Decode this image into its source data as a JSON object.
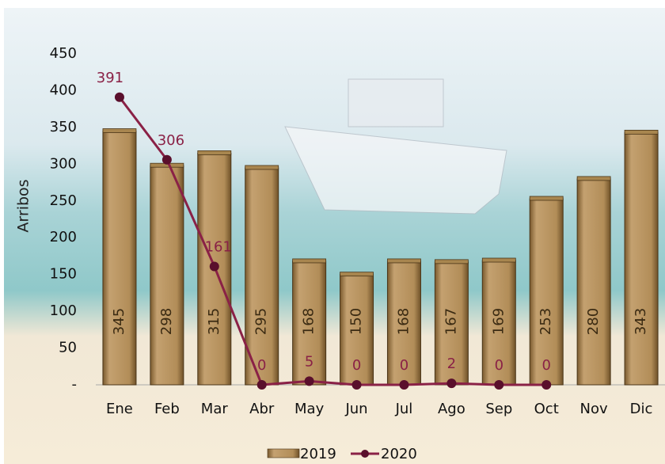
{
  "chart_data": {
    "type": "bar",
    "y_label": "Arribos",
    "categories": [
      "Ene",
      "Feb",
      "Mar",
      "Abr",
      "May",
      "Jun",
      "Jul",
      "Ago",
      "Sep",
      "Oct",
      "Nov",
      "Dic"
    ],
    "series": [
      {
        "name": "2019",
        "type": "bar",
        "color": "#a8864f",
        "values": [
          345,
          298,
          315,
          295,
          168,
          150,
          168,
          167,
          169,
          253,
          280,
          343
        ]
      },
      {
        "name": "2020",
        "type": "line",
        "color": "#8a2146",
        "values": [
          391,
          306,
          161,
          0,
          5,
          0,
          0,
          2,
          0,
          0,
          null,
          null
        ]
      }
    ],
    "ylim": [
      0,
      450
    ],
    "yticks": [
      {
        "value": 0,
        "label": "-"
      },
      50,
      100,
      150,
      200,
      250,
      300,
      350,
      400,
      450
    ]
  }
}
